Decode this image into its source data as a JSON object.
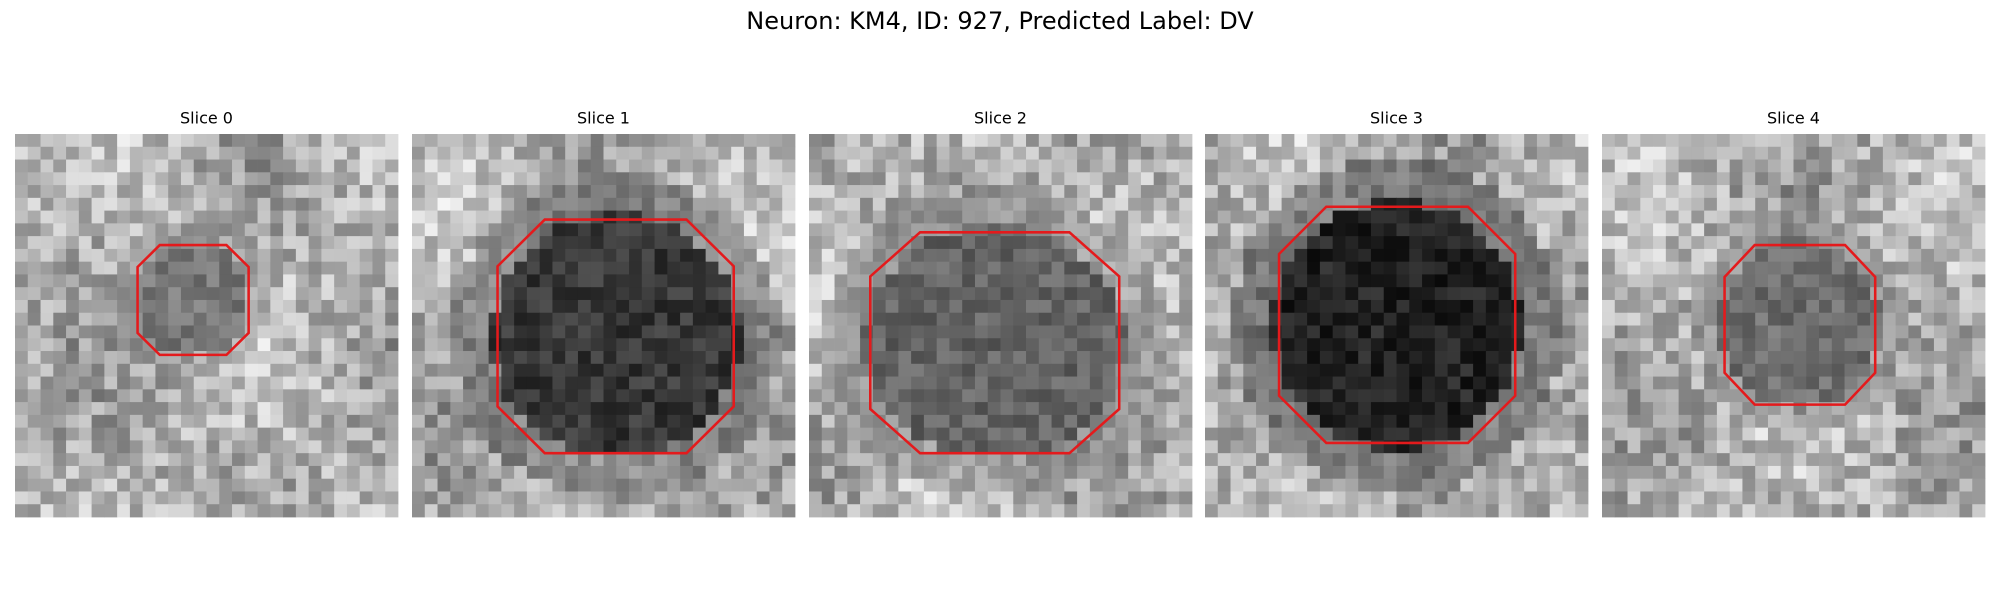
{
  "title": "Neuron: KM4, ID: 927, Predicted Label: DV",
  "panels": [
    {
      "title": "Slice 0"
    },
    {
      "title": "Slice 1"
    },
    {
      "title": "Slice 2"
    },
    {
      "title": "Slice 3"
    },
    {
      "title": "Slice 4"
    }
  ]
}
